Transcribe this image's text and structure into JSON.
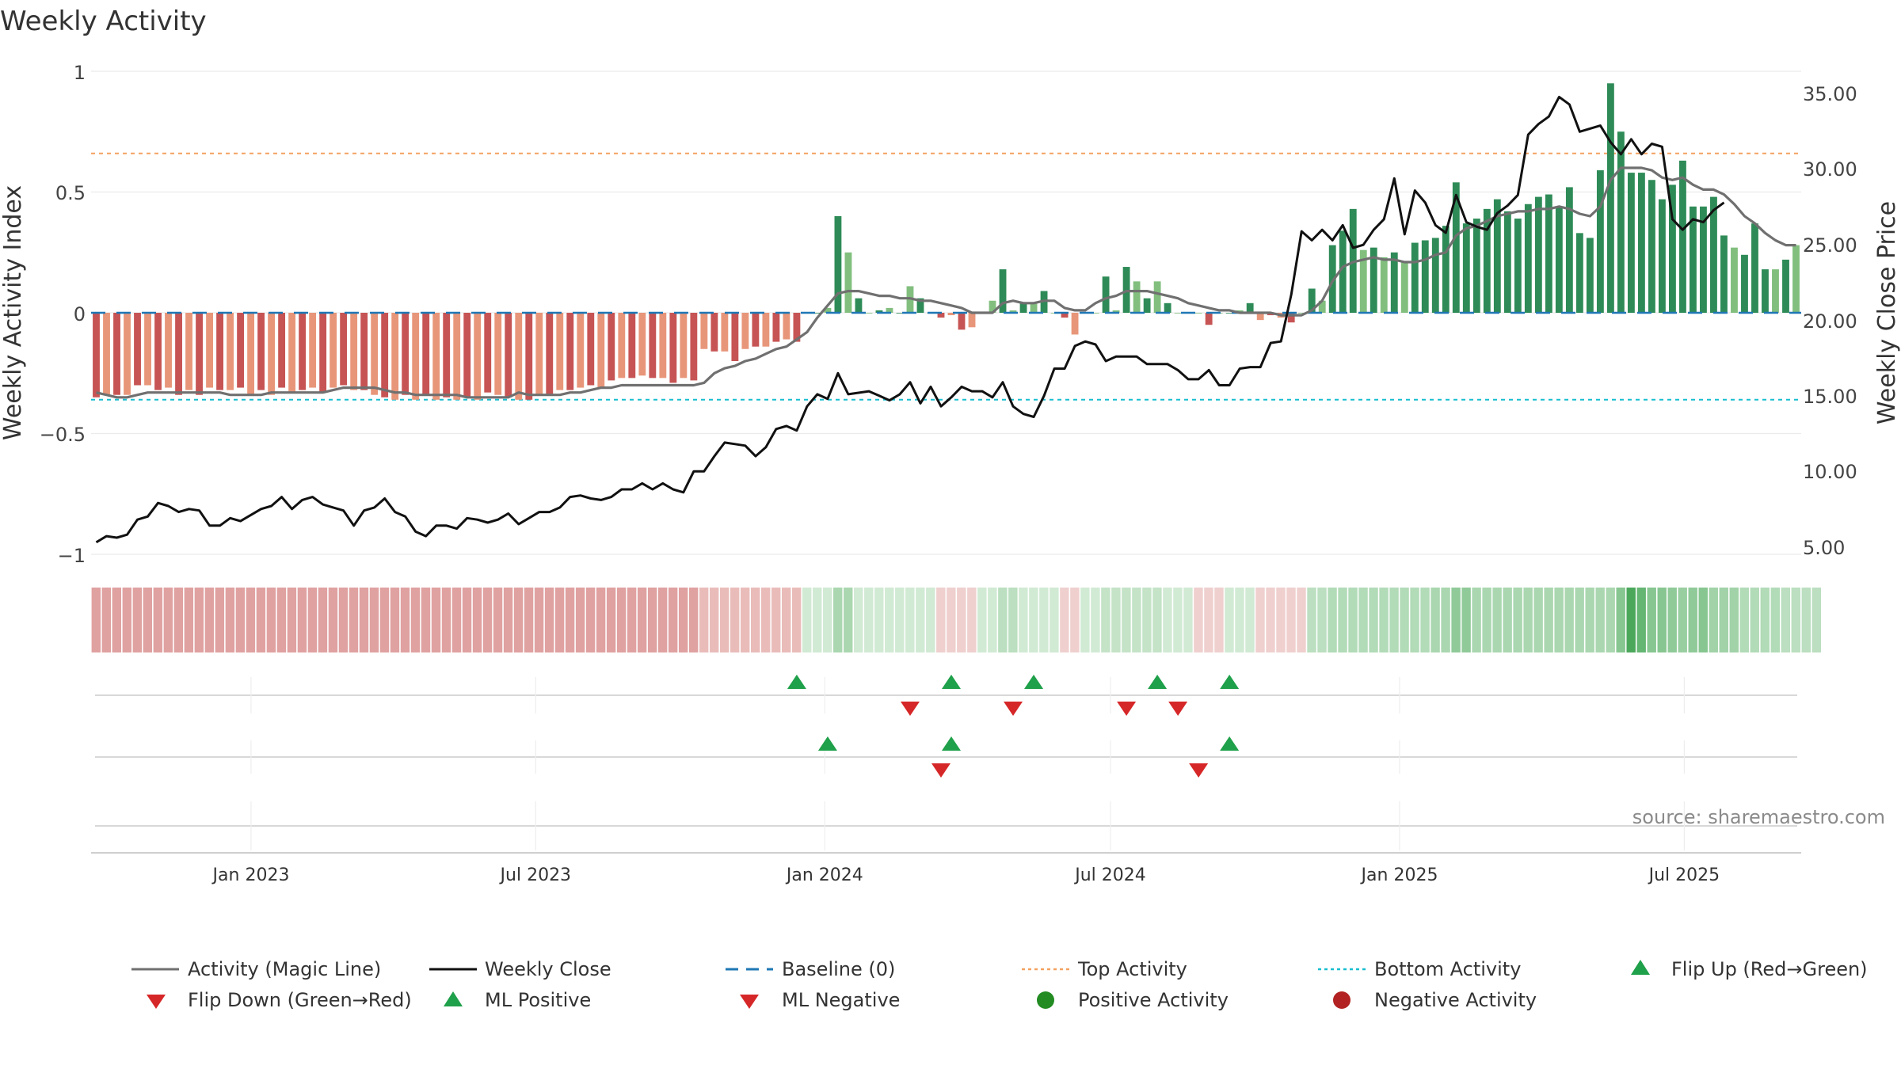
{
  "chart_data": {
    "type": "bar",
    "title": "Weekly Activity",
    "ylabel": "Weekly Activity Index",
    "y2label": "Weekly Close Price",
    "ylim": [
      -1,
      1
    ],
    "y2lim": [
      5,
      37
    ],
    "yticks": [
      "1",
      "0.5",
      "0",
      "−0.5",
      "−1"
    ],
    "y2ticks": [
      "35.00",
      "30.00",
      "25.00",
      "20.00",
      "15.00",
      "10.00",
      "5.00"
    ],
    "x_range_weeks": [
      0,
      155
    ],
    "x_ticks": [
      {
        "label": "Jan 2023",
        "week": 14.5
      },
      {
        "label": "Jul 2023",
        "week": 40.3
      },
      {
        "label": "Jan 2024",
        "week": 66.5
      },
      {
        "label": "Jul 2024",
        "week": 92.4
      },
      {
        "label": "Jan 2025",
        "week": 118.6
      },
      {
        "label": "Jul 2025",
        "week": 144.4
      }
    ],
    "top_activity": 0.66,
    "bottom_activity": -0.36,
    "baseline": 0,
    "activity": [
      -0.35,
      -0.34,
      -0.34,
      -0.34,
      -0.3,
      -0.3,
      -0.32,
      -0.31,
      -0.34,
      -0.32,
      -0.34,
      -0.31,
      -0.32,
      -0.32,
      -0.31,
      -0.34,
      -0.32,
      -0.34,
      -0.31,
      -0.33,
      -0.32,
      -0.31,
      -0.33,
      -0.31,
      -0.3,
      -0.32,
      -0.32,
      -0.34,
      -0.35,
      -0.36,
      -0.34,
      -0.36,
      -0.34,
      -0.36,
      -0.35,
      -0.36,
      -0.35,
      -0.36,
      -0.33,
      -0.34,
      -0.35,
      -0.36,
      -0.36,
      -0.34,
      -0.34,
      -0.32,
      -0.32,
      -0.31,
      -0.3,
      -0.31,
      -0.28,
      -0.27,
      -0.27,
      -0.26,
      -0.27,
      -0.27,
      -0.29,
      -0.27,
      -0.28,
      -0.15,
      -0.16,
      -0.16,
      -0.2,
      -0.15,
      -0.14,
      -0.14,
      -0.12,
      -0.11,
      -0.12,
      0.0,
      0.0,
      0.02,
      0.4,
      0.25,
      0.06,
      0.0,
      0.01,
      0.02,
      0.0,
      0.11,
      0.06,
      0.0,
      -0.02,
      -0.01,
      -0.07,
      -0.06,
      0.0,
      0.05,
      0.18,
      0.01,
      0.04,
      0.04,
      0.09,
      0.0,
      -0.02,
      -0.09,
      0.0,
      0.0,
      0.15,
      0.01,
      0.19,
      0.13,
      0.06,
      0.13,
      0.04,
      0.0,
      0.0,
      0.0,
      -0.05,
      0.0,
      0.0,
      0.01,
      0.04,
      -0.03,
      -0.01,
      -0.02,
      -0.04,
      0.0,
      0.1,
      0.05,
      0.28,
      0.34,
      0.43,
      0.26,
      0.27,
      0.23,
      0.25,
      0.21,
      0.29,
      0.3,
      0.31,
      0.36,
      0.54,
      0.37,
      0.39,
      0.43,
      0.47,
      0.42,
      0.39,
      0.45,
      0.48,
      0.49,
      0.44,
      0.52,
      0.33,
      0.31,
      0.59,
      0.95,
      0.75,
      0.58,
      0.58,
      0.55,
      0.47,
      0.53,
      0.63,
      0.44,
      0.44,
      0.48,
      0.32,
      0.27,
      0.24,
      0.37,
      0.18,
      0.18,
      0.22,
      0.28
    ],
    "magic_line": [
      -0.33,
      -0.34,
      -0.35,
      -0.35,
      -0.34,
      -0.33,
      -0.33,
      -0.33,
      -0.33,
      -0.33,
      -0.33,
      -0.33,
      -0.33,
      -0.34,
      -0.34,
      -0.34,
      -0.34,
      -0.33,
      -0.33,
      -0.33,
      -0.33,
      -0.33,
      -0.33,
      -0.32,
      -0.31,
      -0.31,
      -0.31,
      -0.31,
      -0.32,
      -0.33,
      -0.33,
      -0.34,
      -0.34,
      -0.34,
      -0.34,
      -0.34,
      -0.35,
      -0.35,
      -0.35,
      -0.35,
      -0.35,
      -0.33,
      -0.34,
      -0.34,
      -0.34,
      -0.34,
      -0.33,
      -0.33,
      -0.32,
      -0.31,
      -0.31,
      -0.3,
      -0.3,
      -0.3,
      -0.3,
      -0.3,
      -0.3,
      -0.3,
      -0.3,
      -0.29,
      -0.25,
      -0.23,
      -0.22,
      -0.2,
      -0.19,
      -0.17,
      -0.15,
      -0.14,
      -0.11,
      -0.08,
      -0.02,
      0.03,
      0.08,
      0.09,
      0.09,
      0.08,
      0.07,
      0.07,
      0.06,
      0.06,
      0.05,
      0.05,
      0.04,
      0.03,
      0.02,
      0.0,
      0.0,
      0.0,
      0.04,
      0.05,
      0.04,
      0.04,
      0.05,
      0.05,
      0.02,
      0.01,
      0.01,
      0.04,
      0.06,
      0.07,
      0.09,
      0.09,
      0.09,
      0.08,
      0.07,
      0.06,
      0.04,
      0.03,
      0.02,
      0.01,
      0.01,
      0.0,
      0.0,
      0.0,
      0.0,
      -0.01,
      -0.01,
      -0.01,
      0.01,
      0.05,
      0.13,
      0.19,
      0.21,
      0.22,
      0.23,
      0.22,
      0.22,
      0.21,
      0.21,
      0.22,
      0.24,
      0.25,
      0.32,
      0.35,
      0.36,
      0.38,
      0.4,
      0.41,
      0.42,
      0.42,
      0.43,
      0.43,
      0.44,
      0.43,
      0.41,
      0.4,
      0.44,
      0.55,
      0.6,
      0.6,
      0.6,
      0.59,
      0.56,
      0.55,
      0.56,
      0.53,
      0.51,
      0.51,
      0.49,
      0.45,
      0.4,
      0.37,
      0.33,
      0.3,
      0.28,
      0.28
    ],
    "weekly_close": [
      5.8,
      6.2,
      6.1,
      6.3,
      7.3,
      7.5,
      8.4,
      8.2,
      7.8,
      8.0,
      7.9,
      6.9,
      6.9,
      7.4,
      7.2,
      7.6,
      8.0,
      8.2,
      8.8,
      8.0,
      8.6,
      8.8,
      8.3,
      8.1,
      7.9,
      6.9,
      7.9,
      8.1,
      8.7,
      7.8,
      7.5,
      6.5,
      6.2,
      6.9,
      6.9,
      6.7,
      7.4,
      7.3,
      7.1,
      7.3,
      7.7,
      7.0,
      7.4,
      7.8,
      7.8,
      8.1,
      8.8,
      8.9,
      8.7,
      8.6,
      8.8,
      9.3,
      9.3,
      9.7,
      9.3,
      9.7,
      9.3,
      9.1,
      10.5,
      10.5,
      11.5,
      12.4,
      12.3,
      12.2,
      11.5,
      12.1,
      13.3,
      13.5,
      13.2,
      14.8,
      15.6,
      15.3,
      17.0,
      15.6,
      15.7,
      15.8,
      15.5,
      15.2,
      15.6,
      16.4,
      15.0,
      16.1,
      14.8,
      15.4,
      16.1,
      15.8,
      15.8,
      15.4,
      16.4,
      14.8,
      14.3,
      14.1,
      15.5,
      17.3,
      17.3,
      18.8,
      19.1,
      18.9,
      17.8,
      18.1,
      18.1,
      18.1,
      17.6,
      17.6,
      17.6,
      17.2,
      16.6,
      16.6,
      17.2,
      16.2,
      16.2,
      17.3,
      17.4,
      17.4,
      19.0,
      19.1,
      22.2,
      26.4,
      25.8,
      26.5,
      25.8,
      26.8,
      25.3,
      25.5,
      26.5,
      27.2,
      29.9,
      26.2,
      29.1,
      28.3,
      26.8,
      26.3,
      28.8,
      27.0,
      26.7,
      26.5,
      27.6,
      28.1,
      28.8,
      32.8,
      33.5,
      34.0,
      35.3,
      34.8,
      33.0,
      33.2,
      33.4,
      32.3,
      31.5,
      32.5,
      31.5,
      32.2,
      32.0,
      27.2,
      26.5,
      27.2,
      27.0,
      27.8,
      28.3
    ],
    "state_strip": [
      -0.33,
      -0.33,
      -0.33,
      -0.33,
      -0.33,
      -0.33,
      -0.33,
      -0.33,
      -0.33,
      -0.33,
      -0.33,
      -0.33,
      -0.33,
      -0.33,
      -0.33,
      -0.33,
      -0.33,
      -0.33,
      -0.33,
      -0.33,
      -0.33,
      -0.33,
      -0.33,
      -0.33,
      -0.33,
      -0.33,
      -0.33,
      -0.33,
      -0.33,
      -0.33,
      -0.33,
      -0.33,
      -0.33,
      -0.33,
      -0.33,
      -0.33,
      -0.33,
      -0.33,
      -0.33,
      -0.33,
      -0.33,
      -0.33,
      -0.33,
      -0.33,
      -0.33,
      -0.33,
      -0.33,
      -0.33,
      -0.33,
      -0.33,
      -0.33,
      -0.33,
      -0.33,
      -0.33,
      -0.33,
      -0.33,
      -0.33,
      -0.33,
      -0.33,
      -0.2,
      -0.2,
      -0.2,
      -0.2,
      -0.2,
      -0.2,
      -0.2,
      -0.2,
      -0.2,
      -0.2,
      0.12,
      0.12,
      0.12,
      0.35,
      0.35,
      0.12,
      0.12,
      0.12,
      0.12,
      0.12,
      0.12,
      0.12,
      0.12,
      -0.1,
      -0.1,
      -0.1,
      -0.1,
      0.12,
      0.12,
      0.25,
      0.25,
      0.12,
      0.12,
      0.12,
      0.12,
      -0.1,
      -0.1,
      0.12,
      0.12,
      0.2,
      0.2,
      0.2,
      0.2,
      0.2,
      0.2,
      0.12,
      0.12,
      0.12,
      -0.1,
      -0.1,
      -0.1,
      0.12,
      0.12,
      0.12,
      -0.1,
      -0.1,
      -0.1,
      -0.1,
      -0.1,
      0.25,
      0.25,
      0.3,
      0.3,
      0.3,
      0.3,
      0.3,
      0.3,
      0.3,
      0.3,
      0.3,
      0.3,
      0.35,
      0.35,
      0.5,
      0.5,
      0.35,
      0.35,
      0.35,
      0.35,
      0.35,
      0.35,
      0.35,
      0.35,
      0.35,
      0.35,
      0.35,
      0.35,
      0.35,
      0.35,
      0.55,
      0.9,
      0.75,
      0.55,
      0.55,
      0.5,
      0.45,
      0.5,
      0.55,
      0.4,
      0.4,
      0.4,
      0.3,
      0.3,
      0.3,
      0.3,
      0.25,
      0.25,
      0.25,
      0.25
    ],
    "flip_up_weeks": [
      68,
      83,
      91,
      103,
      110
    ],
    "flip_down_weeks": [
      79,
      89,
      100,
      105
    ],
    "ml_positive_weeks": [
      71,
      83,
      110
    ],
    "ml_negative_weeks": [
      82,
      107
    ],
    "legend": [
      "Activity (Magic Line)",
      "Weekly Close",
      "Baseline (0)",
      "Top Activity",
      "Bottom Activity",
      "Flip Up (Red→Green)",
      "Flip Down (Green→Red)",
      "ML Positive",
      "ML Negative",
      "Positive Activity",
      "Negative Activity"
    ],
    "source": "source: sharemaestro.com"
  },
  "colors": {
    "pos_strong": "#2e8b57",
    "pos_light": "#82bf7e",
    "neg_strong": "#c75454",
    "neg_light": "#e8967a",
    "magic_line": "#707070",
    "close_line": "#111111",
    "baseline": "#1f77b4",
    "top_activity": "#f4a261",
    "bottom_activity": "#17becf",
    "flip_up": "#1fa04a",
    "flip_down": "#d62728",
    "pos_dot": "#228b22",
    "neg_dot": "#b22222"
  }
}
